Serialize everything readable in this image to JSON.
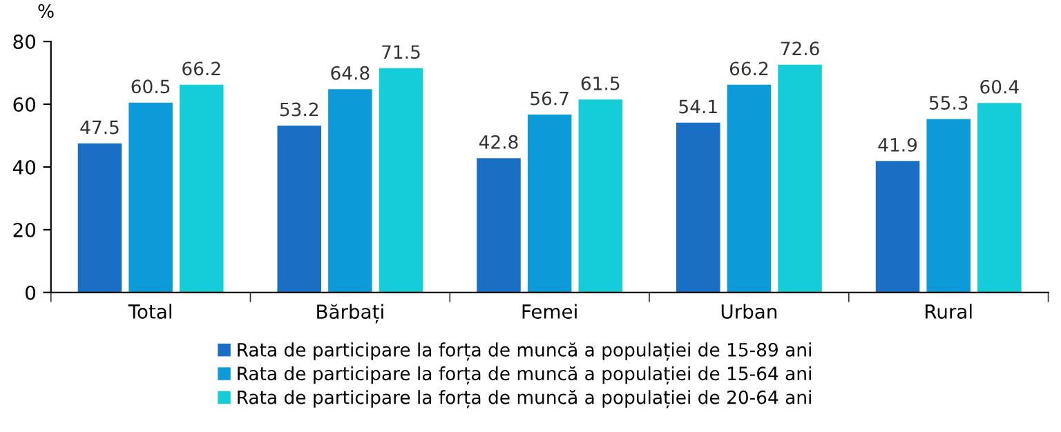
{
  "chart_data": {
    "type": "bar",
    "ylabel": "%",
    "categories": [
      "Total",
      "Bărbați",
      "Femei",
      "Urban",
      "Rural"
    ],
    "series": [
      {
        "name": "Rata de participare la forța de muncă a populației de 15-89 ani",
        "color": "#1a6fc4",
        "values": [
          47.5,
          53.2,
          42.8,
          54.1,
          41.9
        ]
      },
      {
        "name": "Rata de participare la forța de muncă a populației de 15-64 ani",
        "color": "#0d9ad8",
        "values": [
          60.5,
          64.8,
          56.7,
          66.2,
          55.3
        ]
      },
      {
        "name": "Rata de participare la forța de muncă a populației de 20-64 ani",
        "color": "#14cdd8",
        "values": [
          66.2,
          71.5,
          61.5,
          72.6,
          60.4
        ]
      }
    ],
    "ylim": [
      0,
      80
    ],
    "yticks": [
      0,
      20,
      40,
      60,
      80
    ],
    "data_labels": true,
    "grid": false,
    "legend": "bottom"
  }
}
